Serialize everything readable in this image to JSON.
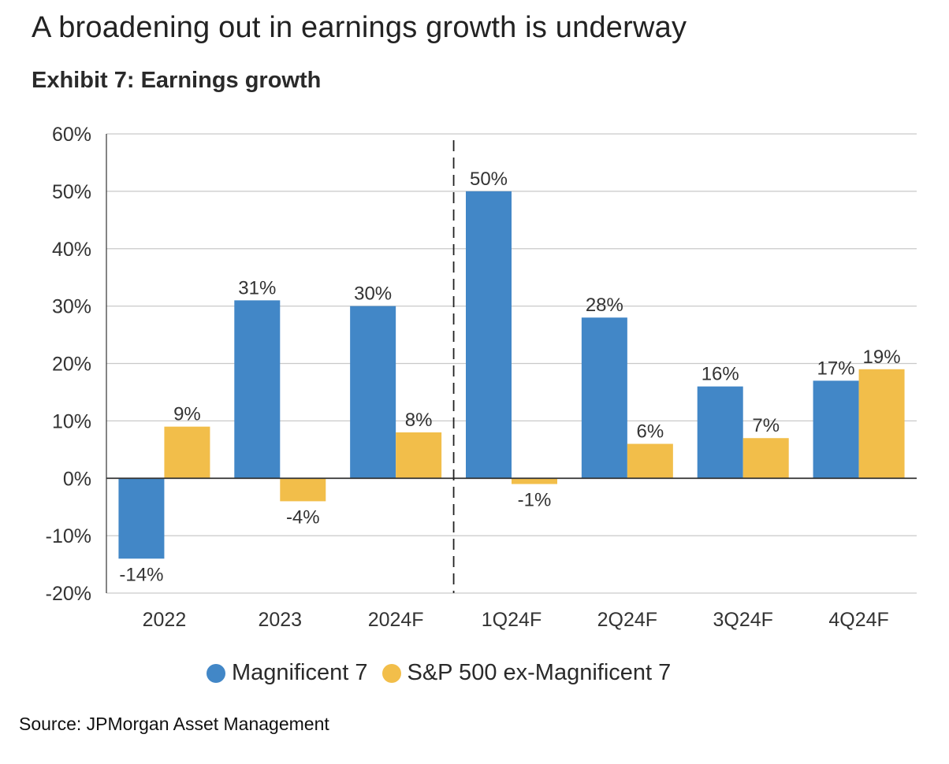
{
  "header": {
    "title": "A broadening out in earnings growth is underway",
    "subtitle": "Exhibit 7: Earnings growth"
  },
  "source": "Source: JPMorgan Asset Management",
  "colors": {
    "mag7": "#4287c7",
    "sp500_ex": "#f2be4a",
    "grid": "#c9c9c9",
    "axis": "#333333"
  },
  "legend": [
    {
      "label": "Magnificent 7",
      "color": "#4287c7"
    },
    {
      "label": "S&P 500 ex-Magnificent 7",
      "color": "#f2be4a"
    }
  ],
  "chart_data": {
    "type": "bar",
    "categories": [
      "2022",
      "2023",
      "2024F",
      "1Q24F",
      "2Q24F",
      "3Q24F",
      "4Q24F"
    ],
    "series": [
      {
        "name": "Magnificent 7",
        "values": [
          -14,
          31,
          30,
          50,
          28,
          16,
          17
        ],
        "labels": [
          "-14%",
          "31%",
          "30%",
          "50%",
          "28%",
          "16%",
          "17%"
        ]
      },
      {
        "name": "S&P 500 ex-Magnificent 7",
        "values": [
          9,
          -4,
          8,
          -1,
          6,
          7,
          19
        ],
        "labels": [
          "9%",
          "-4%",
          "8%",
          "-1%",
          "6%",
          "7%",
          "19%"
        ]
      }
    ],
    "ylim": [
      -20,
      60
    ],
    "yticks": [
      -20,
      -10,
      0,
      10,
      20,
      30,
      40,
      50,
      60
    ],
    "ytick_labels": [
      "-20%",
      "-10%",
      "0%",
      "10%",
      "20%",
      "30%",
      "40%",
      "50%",
      "60%"
    ],
    "grid": true,
    "divider_after_category": "2024F",
    "legend_position": "bottom"
  }
}
